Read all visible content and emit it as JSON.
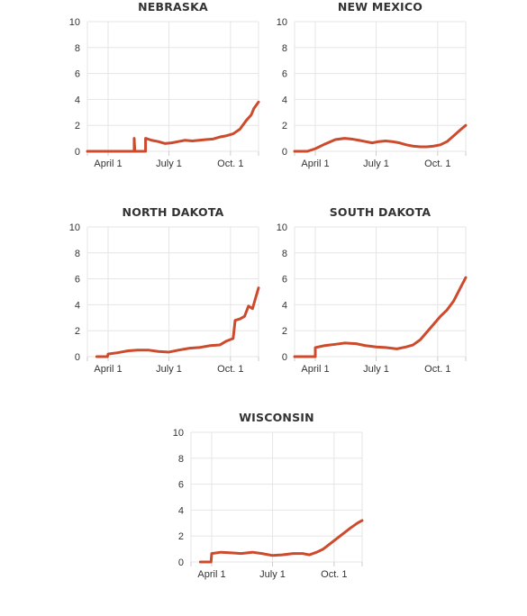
{
  "page": {
    "colors": {
      "line": "#cc4b2d",
      "grid": "#e5e5e5",
      "text": "#333333"
    }
  },
  "chart_data": [
    {
      "type": "line",
      "title": "NEBRASKA",
      "xlabel": "",
      "ylabel": "",
      "ylim": [
        0,
        10
      ],
      "yticks": [
        "0",
        "2",
        "4",
        "6",
        "8",
        "10"
      ],
      "xticks": [
        "April 1",
        "July 1",
        "Oct. 1"
      ],
      "xdomain": [
        "2020-03-01",
        "2020-11-12"
      ],
      "grid": true,
      "series": [
        {
          "points": [
            [
              "2020-03-01",
              0
            ],
            [
              "2020-05-10",
              0
            ],
            [
              "2020-05-10",
              1.0
            ],
            [
              "2020-05-11",
              0
            ],
            [
              "2020-05-27",
              0
            ],
            [
              "2020-05-27",
              1.0
            ],
            [
              "2020-06-05",
              0.85
            ],
            [
              "2020-06-15",
              0.75
            ],
            [
              "2020-06-25",
              0.6
            ],
            [
              "2020-07-05",
              0.65
            ],
            [
              "2020-07-15",
              0.75
            ],
            [
              "2020-07-25",
              0.85
            ],
            [
              "2020-08-05",
              0.8
            ],
            [
              "2020-08-15",
              0.85
            ],
            [
              "2020-08-25",
              0.9
            ],
            [
              "2020-09-05",
              0.95
            ],
            [
              "2020-09-15",
              1.1
            ],
            [
              "2020-09-25",
              1.2
            ],
            [
              "2020-10-05",
              1.35
            ],
            [
              "2020-10-15",
              1.7
            ],
            [
              "2020-10-25",
              2.4
            ],
            [
              "2020-11-01",
              2.8
            ],
            [
              "2020-11-05",
              3.3
            ],
            [
              "2020-11-12",
              3.8
            ]
          ]
        }
      ]
    },
    {
      "type": "line",
      "title": "NEW MEXICO",
      "xlabel": "",
      "ylabel": "",
      "ylim": [
        0,
        10
      ],
      "yticks": [
        "0",
        "2",
        "4",
        "6",
        "8",
        "10"
      ],
      "xticks": [
        "April 1",
        "July 1",
        "Oct. 1"
      ],
      "xdomain": [
        "2020-03-01",
        "2020-11-12"
      ],
      "grid": true,
      "series": [
        {
          "points": [
            [
              "2020-03-01",
              0
            ],
            [
              "2020-03-20",
              0
            ],
            [
              "2020-04-01",
              0.2
            ],
            [
              "2020-04-15",
              0.55
            ],
            [
              "2020-05-01",
              0.9
            ],
            [
              "2020-05-15",
              1.0
            ],
            [
              "2020-05-25",
              0.95
            ],
            [
              "2020-06-05",
              0.85
            ],
            [
              "2020-06-15",
              0.75
            ],
            [
              "2020-06-25",
              0.65
            ],
            [
              "2020-07-05",
              0.75
            ],
            [
              "2020-07-15",
              0.8
            ],
            [
              "2020-07-25",
              0.75
            ],
            [
              "2020-08-05",
              0.65
            ],
            [
              "2020-08-15",
              0.5
            ],
            [
              "2020-08-25",
              0.4
            ],
            [
              "2020-09-05",
              0.35
            ],
            [
              "2020-09-15",
              0.35
            ],
            [
              "2020-09-25",
              0.4
            ],
            [
              "2020-10-05",
              0.5
            ],
            [
              "2020-10-15",
              0.75
            ],
            [
              "2020-10-25",
              1.2
            ],
            [
              "2020-11-05",
              1.7
            ],
            [
              "2020-11-12",
              2.0
            ]
          ]
        }
      ]
    },
    {
      "type": "line",
      "title": "NORTH DAKOTA",
      "xlabel": "",
      "ylabel": "",
      "ylim": [
        0,
        10
      ],
      "yticks": [
        "0",
        "2",
        "4",
        "6",
        "8",
        "10"
      ],
      "xticks": [
        "April 1",
        "July 1",
        "Oct. 1"
      ],
      "xdomain": [
        "2020-03-01",
        "2020-11-12"
      ],
      "grid": true,
      "series": [
        {
          "points": [
            [
              "2020-03-15",
              0
            ],
            [
              "2020-03-31",
              0
            ],
            [
              "2020-04-01",
              0.2
            ],
            [
              "2020-04-15",
              0.3
            ],
            [
              "2020-05-01",
              0.45
            ],
            [
              "2020-05-15",
              0.5
            ],
            [
              "2020-06-01",
              0.5
            ],
            [
              "2020-06-15",
              0.4
            ],
            [
              "2020-07-01",
              0.35
            ],
            [
              "2020-07-15",
              0.5
            ],
            [
              "2020-08-01",
              0.65
            ],
            [
              "2020-08-15",
              0.7
            ],
            [
              "2020-09-01",
              0.85
            ],
            [
              "2020-09-15",
              0.9
            ],
            [
              "2020-09-25",
              1.2
            ],
            [
              "2020-10-05",
              1.4
            ],
            [
              "2020-10-08",
              2.8
            ],
            [
              "2020-10-15",
              2.9
            ],
            [
              "2020-10-22",
              3.1
            ],
            [
              "2020-10-28",
              3.9
            ],
            [
              "2020-11-03",
              3.7
            ],
            [
              "2020-11-08",
              4.6
            ],
            [
              "2020-11-12",
              5.3
            ]
          ]
        }
      ]
    },
    {
      "type": "line",
      "title": "SOUTH DAKOTA",
      "xlabel": "",
      "ylabel": "",
      "ylim": [
        0,
        10
      ],
      "yticks": [
        "0",
        "2",
        "4",
        "6",
        "8",
        "10"
      ],
      "xticks": [
        "April 1",
        "July 1",
        "Oct. 1"
      ],
      "xdomain": [
        "2020-03-01",
        "2020-11-12"
      ],
      "grid": true,
      "series": [
        {
          "points": [
            [
              "2020-03-01",
              0
            ],
            [
              "2020-04-01",
              0
            ],
            [
              "2020-04-01",
              0.7
            ],
            [
              "2020-04-15",
              0.85
            ],
            [
              "2020-05-01",
              0.95
            ],
            [
              "2020-05-15",
              1.05
            ],
            [
              "2020-06-01",
              1.0
            ],
            [
              "2020-06-15",
              0.85
            ],
            [
              "2020-07-01",
              0.75
            ],
            [
              "2020-07-15",
              0.7
            ],
            [
              "2020-08-01",
              0.6
            ],
            [
              "2020-08-15",
              0.75
            ],
            [
              "2020-08-25",
              0.9
            ],
            [
              "2020-09-05",
              1.3
            ],
            [
              "2020-09-15",
              1.9
            ],
            [
              "2020-09-25",
              2.5
            ],
            [
              "2020-10-05",
              3.1
            ],
            [
              "2020-10-15",
              3.6
            ],
            [
              "2020-10-25",
              4.3
            ],
            [
              "2020-11-05",
              5.4
            ],
            [
              "2020-11-12",
              6.1
            ]
          ]
        }
      ]
    },
    {
      "type": "line",
      "title": "WISCONSIN",
      "xlabel": "",
      "ylabel": "",
      "ylim": [
        0,
        10
      ],
      "yticks": [
        "0",
        "2",
        "4",
        "6",
        "8",
        "10"
      ],
      "xticks": [
        "April 1",
        "July 1",
        "Oct. 1"
      ],
      "xdomain": [
        "2020-03-01",
        "2020-11-12"
      ],
      "grid": true,
      "series": [
        {
          "points": [
            [
              "2020-03-15",
              0
            ],
            [
              "2020-03-31",
              0
            ],
            [
              "2020-04-01",
              0.65
            ],
            [
              "2020-04-15",
              0.75
            ],
            [
              "2020-05-01",
              0.7
            ],
            [
              "2020-05-15",
              0.65
            ],
            [
              "2020-06-01",
              0.75
            ],
            [
              "2020-06-15",
              0.65
            ],
            [
              "2020-07-01",
              0.5
            ],
            [
              "2020-07-15",
              0.55
            ],
            [
              "2020-08-01",
              0.65
            ],
            [
              "2020-08-15",
              0.65
            ],
            [
              "2020-08-25",
              0.55
            ],
            [
              "2020-09-05",
              0.75
            ],
            [
              "2020-09-15",
              1.0
            ],
            [
              "2020-09-25",
              1.4
            ],
            [
              "2020-10-05",
              1.8
            ],
            [
              "2020-10-15",
              2.2
            ],
            [
              "2020-10-25",
              2.6
            ],
            [
              "2020-11-05",
              3.0
            ],
            [
              "2020-11-12",
              3.2
            ]
          ]
        }
      ]
    }
  ]
}
